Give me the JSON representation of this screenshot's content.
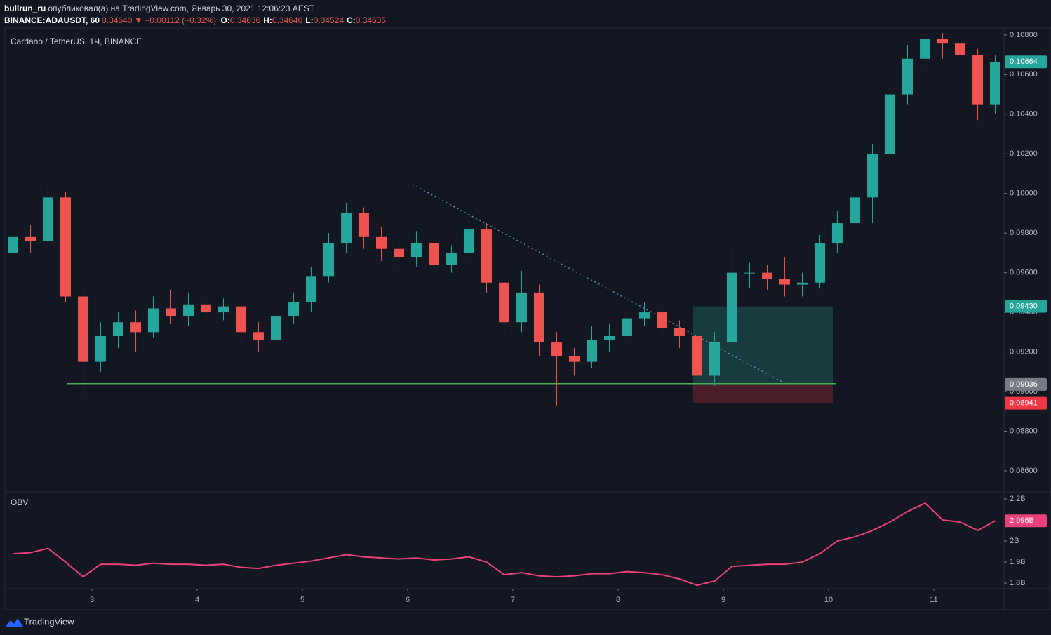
{
  "header": {
    "author": "bullrun_ru",
    "published": "опубликовал(а) на TradingView.com, Январь 30, 2021 12:06:23 AEST",
    "symbol": "BINANCE:ADAUSDT, 60",
    "last": "0.34640",
    "arrow": "▼",
    "change": "−0.00112 (−0.32%)",
    "ohlc": [
      {
        "key": "O:",
        "value": "0.34636"
      },
      {
        "key": "H:",
        "value": "0.34640"
      },
      {
        "key": "L:",
        "value": "0.34524"
      },
      {
        "key": "C:",
        "value": "0.34635"
      }
    ]
  },
  "footer": {
    "brand": "TradingView"
  },
  "chart_data": [
    {
      "type": "candlestick",
      "title": "Cardano / TetherUS, 1Ч, BINANCE",
      "up_color": "#26a69a",
      "down_color": "#ef5350",
      "x": [
        2.25,
        2.417,
        2.583,
        2.75,
        2.917,
        3.083,
        3.25,
        3.417,
        3.583,
        3.75,
        3.917,
        4.083,
        4.25,
        4.417,
        4.583,
        4.75,
        4.917,
        5.083,
        5.25,
        5.417,
        5.583,
        5.75,
        5.917,
        6.083,
        6.25,
        6.417,
        6.583,
        6.75,
        6.917,
        7.083,
        7.25,
        7.417,
        7.583,
        7.75,
        7.917,
        8.083,
        8.25,
        8.417,
        8.583,
        8.75,
        8.917,
        9.083,
        9.25,
        9.417,
        9.583,
        9.75,
        9.917,
        10.083,
        10.25,
        10.417,
        10.583,
        10.75,
        10.917,
        11.083,
        11.25,
        11.417,
        11.583
      ],
      "open": [
        0.097,
        0.0978,
        0.0976,
        0.0998,
        0.0948,
        0.0915,
        0.0928,
        0.0935,
        0.093,
        0.0942,
        0.0938,
        0.0944,
        0.094,
        0.0943,
        0.093,
        0.0926,
        0.0938,
        0.0945,
        0.0958,
        0.0975,
        0.099,
        0.0978,
        0.0972,
        0.0968,
        0.0975,
        0.0964,
        0.097,
        0.0982,
        0.0955,
        0.0935,
        0.095,
        0.0925,
        0.0918,
        0.0915,
        0.0926,
        0.0928,
        0.0937,
        0.094,
        0.0932,
        0.0928,
        0.0908,
        0.0925,
        0.096,
        0.096,
        0.0957,
        0.0954,
        0.0955,
        0.0975,
        0.0985,
        0.0998,
        0.102,
        0.105,
        0.1068,
        0.1078,
        0.1076,
        0.107,
        0.1045
      ],
      "high": [
        0.0985,
        0.0984,
        0.1004,
        0.1001,
        0.0952,
        0.0935,
        0.094,
        0.0941,
        0.0948,
        0.0951,
        0.095,
        0.0948,
        0.0947,
        0.0946,
        0.0935,
        0.0944,
        0.095,
        0.0963,
        0.098,
        0.0995,
        0.0993,
        0.0983,
        0.0977,
        0.0981,
        0.0978,
        0.0974,
        0.0987,
        0.0985,
        0.0958,
        0.0961,
        0.0954,
        0.093,
        0.0922,
        0.0933,
        0.0934,
        0.0942,
        0.0945,
        0.0943,
        0.0936,
        0.0931,
        0.093,
        0.0972,
        0.0965,
        0.0964,
        0.0968,
        0.096,
        0.0979,
        0.0991,
        0.1005,
        0.1025,
        0.1055,
        0.1075,
        0.1081,
        0.1081,
        0.1081,
        0.1073,
        0.107
      ],
      "low": [
        0.0965,
        0.097,
        0.0972,
        0.0945,
        0.0897,
        0.091,
        0.0922,
        0.092,
        0.0927,
        0.0934,
        0.0933,
        0.0935,
        0.0936,
        0.0925,
        0.092,
        0.0922,
        0.0934,
        0.094,
        0.0955,
        0.097,
        0.0972,
        0.0966,
        0.0962,
        0.0963,
        0.096,
        0.096,
        0.0966,
        0.095,
        0.0928,
        0.093,
        0.0918,
        0.0893,
        0.0908,
        0.0912,
        0.092,
        0.0924,
        0.0933,
        0.0928,
        0.0922,
        0.09,
        0.0903,
        0.0922,
        0.0952,
        0.0951,
        0.0948,
        0.0948,
        0.0952,
        0.097,
        0.098,
        0.0985,
        0.1015,
        0.1045,
        0.106,
        0.1068,
        0.106,
        0.1037,
        0.104
      ],
      "close": [
        0.0978,
        0.0976,
        0.0998,
        0.0948,
        0.0915,
        0.0928,
        0.0935,
        0.093,
        0.0942,
        0.0938,
        0.0944,
        0.094,
        0.0943,
        0.093,
        0.0926,
        0.0938,
        0.0945,
        0.0958,
        0.0975,
        0.099,
        0.0978,
        0.0972,
        0.0968,
        0.0975,
        0.0964,
        0.097,
        0.0982,
        0.0955,
        0.0935,
        0.095,
        0.0925,
        0.0918,
        0.0915,
        0.0926,
        0.0928,
        0.0937,
        0.094,
        0.0932,
        0.0928,
        0.0908,
        0.0925,
        0.096,
        0.096,
        0.0957,
        0.0954,
        0.0955,
        0.0975,
        0.0985,
        0.0998,
        0.102,
        0.105,
        0.1068,
        0.1078,
        0.1076,
        0.107,
        0.1045,
        0.10664
      ],
      "xlim": [
        2.18,
        11.66
      ],
      "xticks": [
        3,
        4,
        5,
        6,
        7,
        8,
        9,
        10,
        11
      ],
      "ylim": [
        0.08497,
        0.10835
      ],
      "yticks": [
        {
          "value": 0.086,
          "label": "0.08600"
        },
        {
          "value": 0.088,
          "label": "0.08800"
        },
        {
          "value": 0.09,
          "label": "0.09000"
        },
        {
          "value": 0.092,
          "label": "0.09200"
        },
        {
          "value": 0.094,
          "label": "0.09400"
        },
        {
          "value": 0.096,
          "label": "0.09600"
        },
        {
          "value": 0.098,
          "label": "0.09800"
        },
        {
          "value": 0.1,
          "label": "0.10000"
        },
        {
          "value": 0.102,
          "label": "0.10200"
        },
        {
          "value": 0.104,
          "label": "0.10400"
        },
        {
          "value": 0.106,
          "label": "0.10600"
        },
        {
          "value": 0.108,
          "label": "0.10800"
        }
      ],
      "grid": false,
      "last_price": {
        "value": 0.10664,
        "label": "0.10664",
        "color": "#26a69a"
      },
      "support": {
        "value": 0.0904,
        "x": [
          2.76,
          10.07
        ],
        "color": "#4caf50"
      },
      "trendline": {
        "x": [
          6.047,
          9.58
        ],
        "y": [
          0.10045,
          0.09043
        ],
        "color": "#5d8aa8"
      },
      "position": {
        "x": [
          8.713,
          10.04
        ],
        "target": {
          "value": 0.0943,
          "label": "0.09430",
          "color": "#26a69a"
        },
        "entry": {
          "value": 0.09036,
          "label": "0.09036",
          "color": "#787b86"
        },
        "stop": {
          "value": 0.08941,
          "label": "0.08941",
          "color": "#f23645"
        }
      }
    },
    {
      "type": "line",
      "title": "OBV",
      "color": "#ec407a",
      "values": [
        1.94,
        1.945,
        1.965,
        1.9,
        1.83,
        1.89,
        1.89,
        1.885,
        1.895,
        1.89,
        1.89,
        1.885,
        1.89,
        1.875,
        1.87,
        1.885,
        1.895,
        1.905,
        1.92,
        1.935,
        1.925,
        1.92,
        1.915,
        1.92,
        1.91,
        1.915,
        1.925,
        1.9,
        1.84,
        1.85,
        1.835,
        1.83,
        1.835,
        1.845,
        1.845,
        1.855,
        1.85,
        1.84,
        1.82,
        1.79,
        1.81,
        1.88,
        1.885,
        1.89,
        1.89,
        1.9,
        1.94,
        2.0,
        2.02,
        2.05,
        2.09,
        2.14,
        2.18,
        2.1,
        2.09,
        2.05,
        2.096
      ],
      "ylim": [
        1.777,
        2.23
      ],
      "yticks": [
        {
          "value": 1.8,
          "label": "1.8B"
        },
        {
          "value": 1.9,
          "label": "1.9B"
        },
        {
          "value": 2,
          "label": "2B"
        },
        {
          "value": 2.2,
          "label": "2.2B"
        }
      ],
      "last_value": {
        "value": 2.096,
        "label": "2.096B"
      }
    }
  ]
}
